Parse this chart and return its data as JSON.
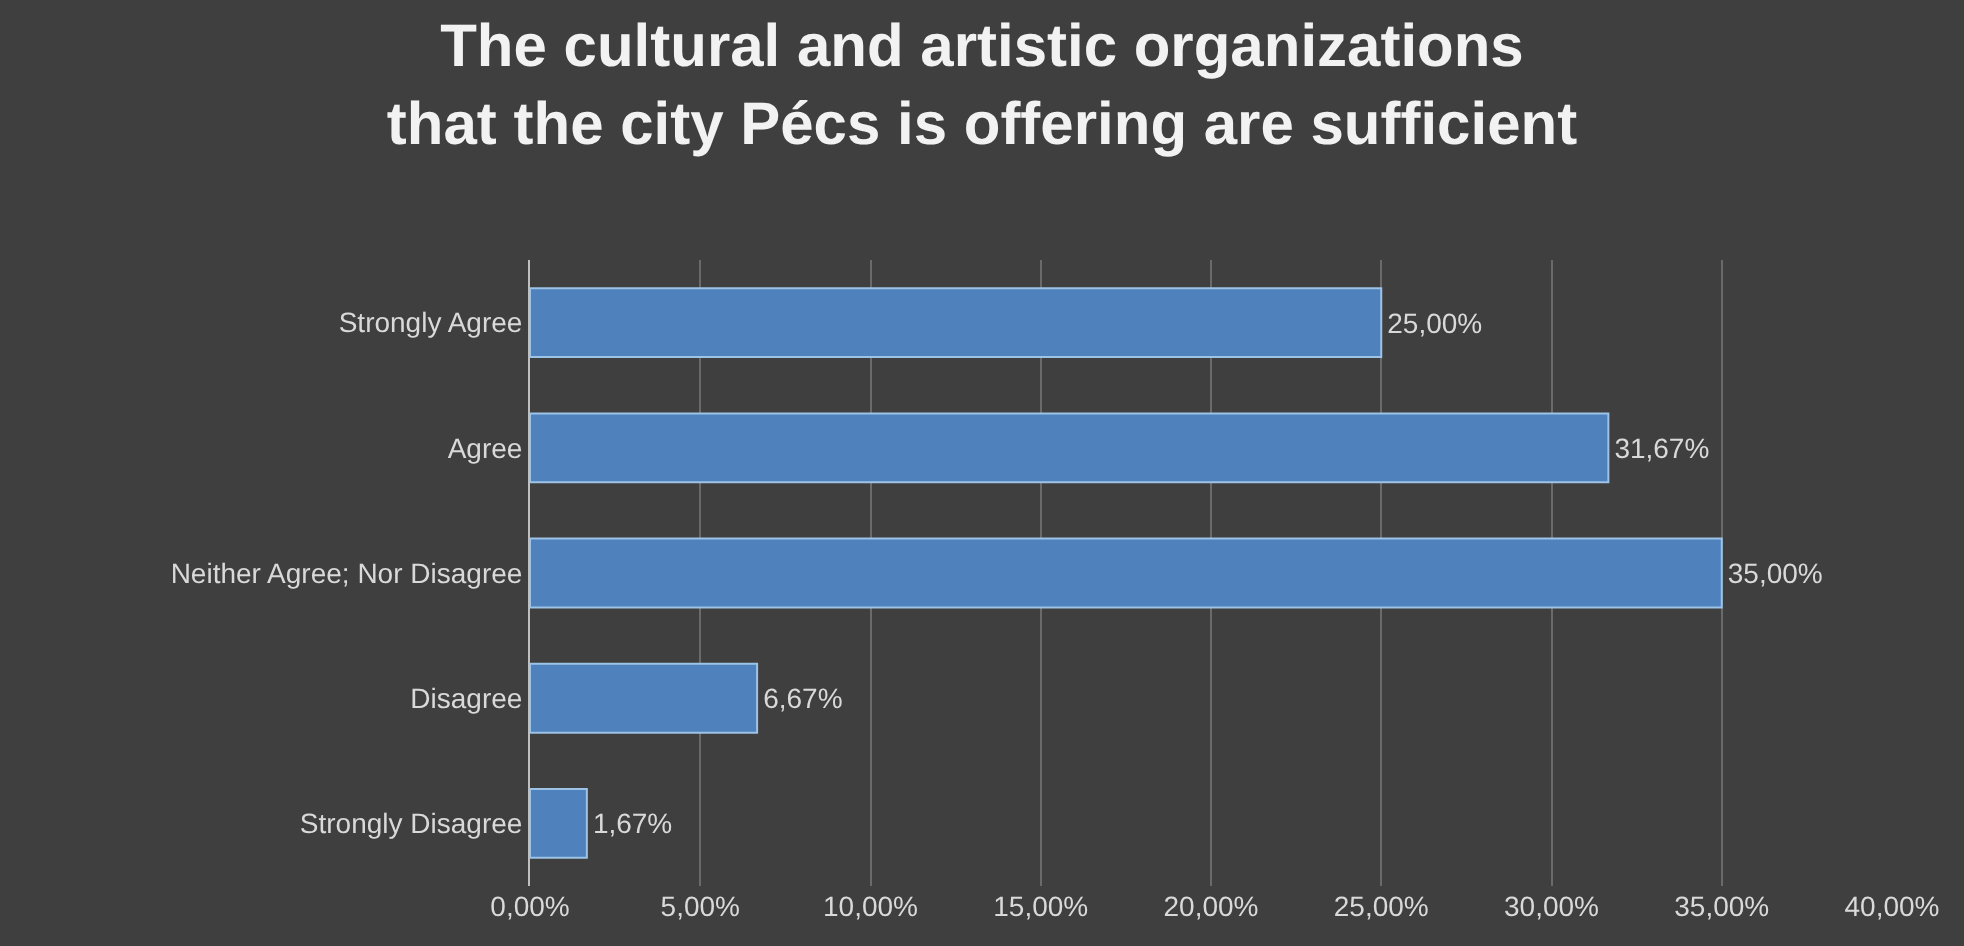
{
  "chart_data": {
    "type": "bar",
    "orientation": "horizontal",
    "title": "The cultural and artistic organizations\nthat the city Pécs is offering are sufficient",
    "categories": [
      "Strongly Agree",
      "Agree",
      "Neither Agree; Nor Disagree",
      "Disagree",
      "Strongly Disagree"
    ],
    "values": [
      25,
      31.67,
      35,
      6.67,
      1.67
    ],
    "value_labels": [
      "25,00%",
      "31,67%",
      "35,00%",
      "6,67%",
      "1,67%"
    ],
    "color": "#4f81bd",
    "xlim": [
      0,
      40
    ],
    "xticks": [
      {
        "value": 0,
        "label": "0,00%"
      },
      {
        "value": 5,
        "label": "5,00%"
      },
      {
        "value": 10,
        "label": "10,00%"
      },
      {
        "value": 15,
        "label": "15,00%"
      },
      {
        "value": 20,
        "label": "20,00%"
      },
      {
        "value": 25,
        "label": "25,00%"
      },
      {
        "value": 30,
        "label": "30,00%"
      },
      {
        "value": 35,
        "label": "35,00%"
      },
      {
        "value": 40,
        "label": "40,00%"
      }
    ],
    "grid": "x",
    "legend": false
  }
}
